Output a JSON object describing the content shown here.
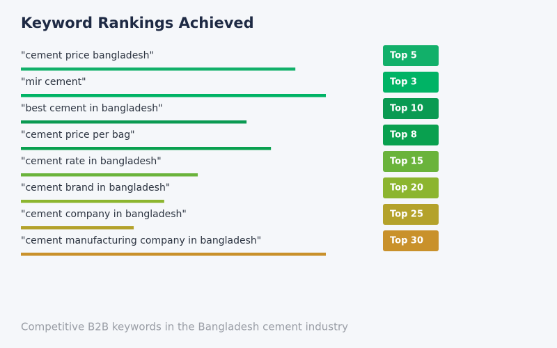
{
  "chart_data": {
    "type": "bar",
    "orientation": "horizontal",
    "title": "Keyword Rankings Achieved",
    "subtitle": "Competitive B2B keywords in the Bangladesh cement industry",
    "categories": [
      "\"cement price bangladesh\"",
      "\"mir cement\"",
      "\"best cement in bangladesh\"",
      "\"cement price per bag\"",
      "\"cement rate in bangladesh\"",
      "\"cement brand in bangladesh\"",
      "\"cement company in bangladesh\"",
      "\"cement manufacturing company in bangladesh\""
    ],
    "rank_labels": [
      "Top 5",
      "Top 3",
      "Top 10",
      "Top 8",
      "Top 15",
      "Top 20",
      "Top 25",
      "Top 30"
    ],
    "values": [
      90,
      100,
      74,
      82,
      58,
      47,
      37,
      100
    ],
    "colors": [
      "#12b06a",
      "#00b365",
      "#0a9a52",
      "#09a04f",
      "#6ab33b",
      "#8cb52f",
      "#b4a22b",
      "#c9912b"
    ],
    "xlim": [
      0,
      100
    ]
  }
}
